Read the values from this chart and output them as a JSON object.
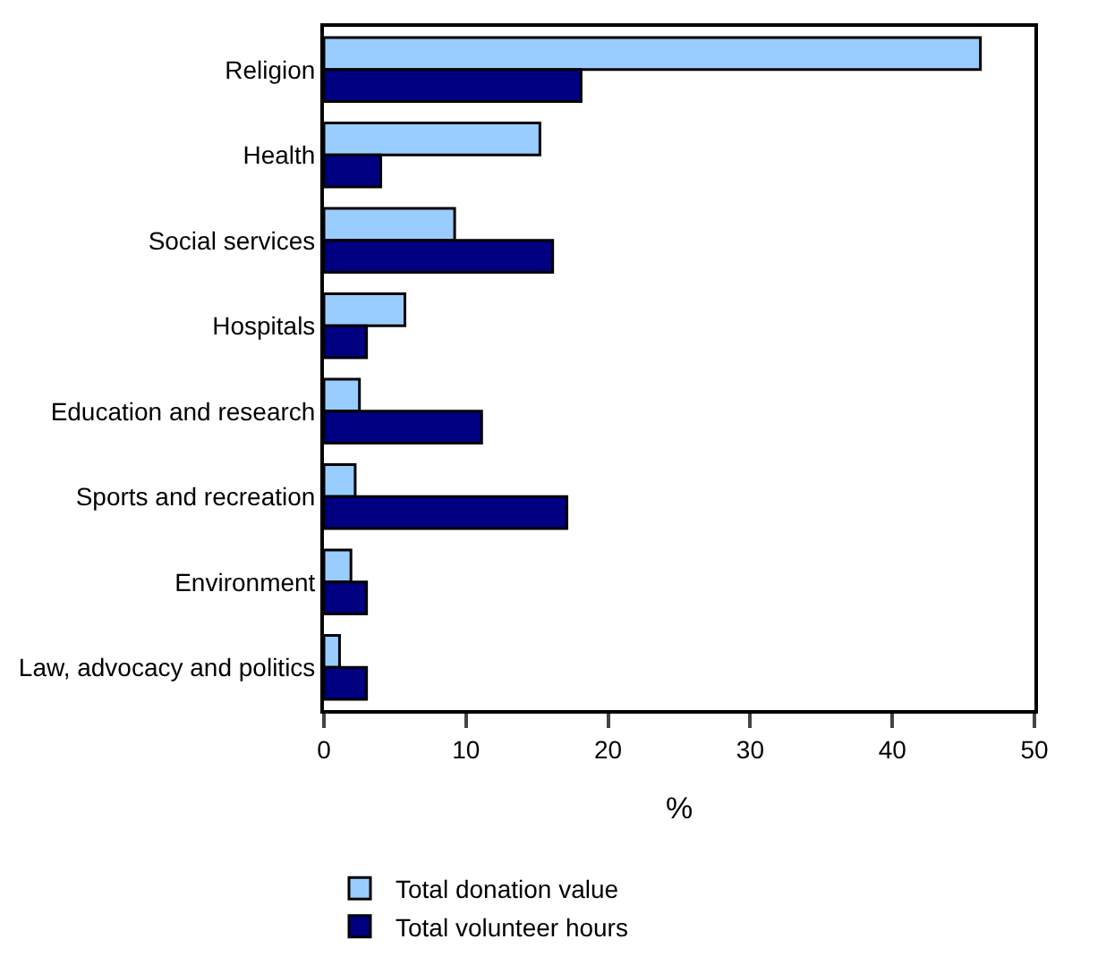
{
  "chart_data": {
    "type": "bar",
    "orientation": "horizontal",
    "xlabel": "%",
    "categories": [
      "Religion",
      "Health",
      "Social services",
      "Hospitals",
      "Education and research",
      "Sports and recreation",
      "Environment",
      "Law, advocacy and politics"
    ],
    "series": [
      {
        "name": "Total donation value",
        "color": "#99ccff",
        "values": [
          46.2,
          15.2,
          9.2,
          5.7,
          2.5,
          2.2,
          1.9,
          1.1
        ]
      },
      {
        "name": "Total volunteer hours",
        "color": "#000080",
        "values": [
          18.1,
          4.0,
          16.1,
          3.0,
          11.1,
          17.1,
          3.0,
          3.0
        ]
      }
    ],
    "xlim": [
      0,
      50
    ],
    "xticks": [
      0,
      10,
      20,
      30,
      40,
      50
    ],
    "legend": "bottom"
  }
}
